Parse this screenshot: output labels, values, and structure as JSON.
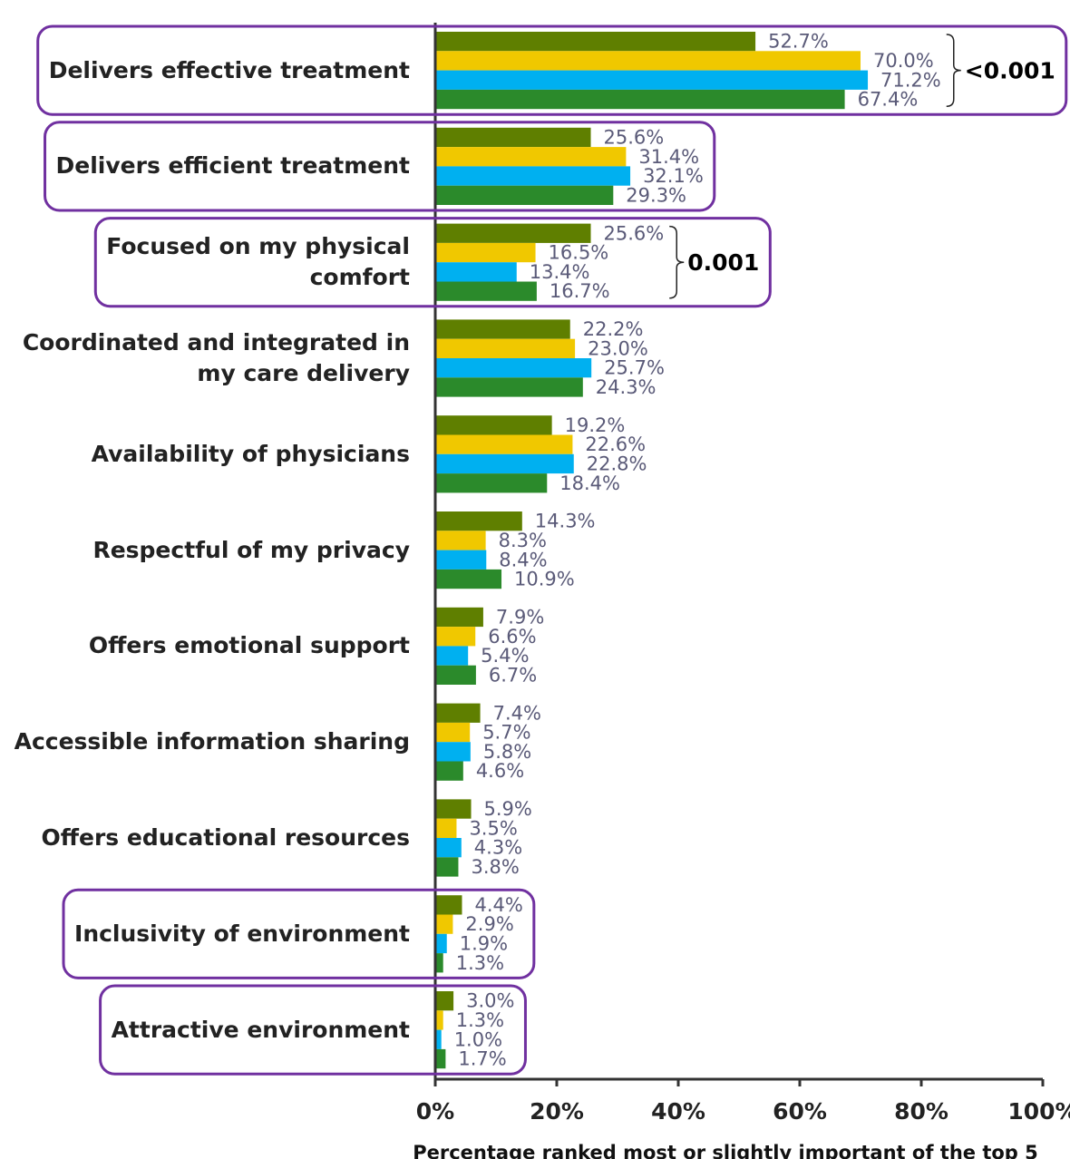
{
  "chart_data": {
    "type": "bar",
    "orientation": "horizontal",
    "categories": [
      "Delivers effective treatment",
      "Delivers efficient treatment",
      "Focused on my physical comfort",
      "Coordinated and integrated in my care delivery",
      "Availability of physicians",
      "Respectful of my privacy",
      "Offers emotional support",
      "Accessible information sharing",
      "Offers educational resources",
      "Inclusivity of environment",
      "Attractive environment"
    ],
    "series": [
      {
        "color": "#5f7f00",
        "values": [
          52.7,
          25.6,
          25.6,
          22.2,
          19.2,
          14.3,
          7.9,
          7.4,
          5.9,
          4.4,
          3.0
        ],
        "value_labels": [
          "52.7%",
          "25.6%",
          "25.6%",
          "22.2%",
          "19.2%",
          "14.3%",
          "7.9%",
          "7.4%",
          "5.9%",
          "4.4%",
          "3.0%"
        ]
      },
      {
        "color": "#f0c800",
        "values": [
          70.0,
          31.4,
          16.5,
          23.0,
          22.6,
          8.3,
          6.6,
          5.7,
          3.5,
          2.9,
          1.3
        ],
        "value_labels": [
          "70.0%",
          "31.4%",
          "16.5%",
          "23.0%",
          "22.6%",
          "8.3%",
          "6.6%",
          "5.7%",
          "3.5%",
          "2.9%",
          "1.3%"
        ]
      },
      {
        "color": "#00b0f0",
        "values": [
          71.2,
          32.1,
          13.4,
          25.7,
          22.8,
          8.4,
          5.4,
          5.8,
          4.3,
          1.9,
          1.0
        ],
        "value_labels": [
          "71.2%",
          "32.1%",
          "13.4%",
          "25.7%",
          "22.8%",
          "8.4%",
          "5.4%",
          "5.8%",
          "4.3%",
          "1.9%",
          "1.0%"
        ]
      },
      {
        "color": "#2b8a2b",
        "values": [
          67.4,
          29.3,
          16.7,
          24.3,
          18.4,
          10.9,
          6.7,
          4.6,
          3.8,
          1.3,
          1.7
        ],
        "value_labels": [
          "67.4%",
          "29.3%",
          "16.7%",
          "24.3%",
          "18.4%",
          "10.9%",
          "6.7%",
          "4.6%",
          "3.8%",
          "1.3%",
          "1.7%"
        ]
      }
    ],
    "xlim": [
      0,
      100
    ],
    "xticks": [
      {
        "value": 0,
        "label": "0%"
      },
      {
        "value": 20,
        "label": "20%"
      },
      {
        "value": 40,
        "label": "40%"
      },
      {
        "value": 60,
        "label": "60%"
      },
      {
        "value": 80,
        "label": "80%"
      },
      {
        "value": 100,
        "label": "100%"
      }
    ],
    "xlabel": "Percentage ranked most or slightly important of the top 5",
    "highlight": [
      0,
      1,
      2,
      9,
      10
    ],
    "highlight_color": "#7030a0",
    "annotations": [
      {
        "text": "<0.001",
        "category": 0
      },
      {
        "text": "0.001",
        "category": 2
      }
    ]
  }
}
